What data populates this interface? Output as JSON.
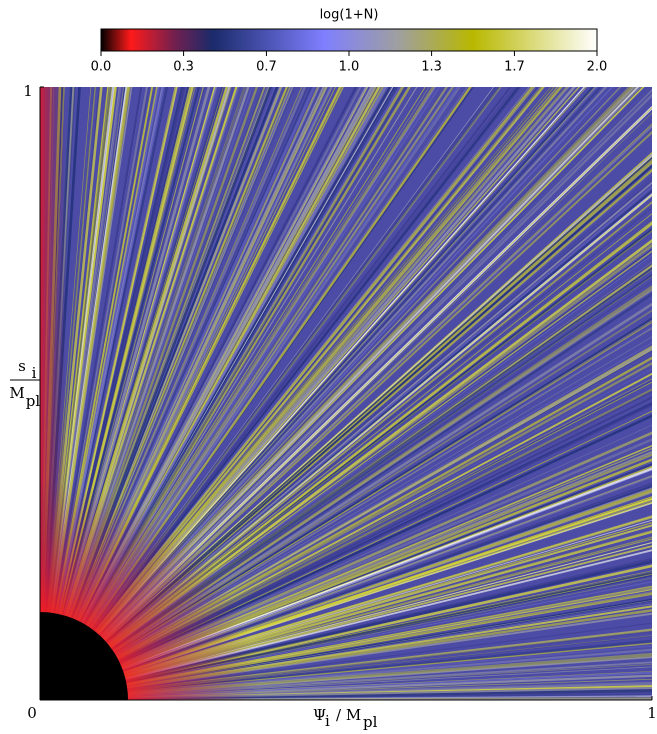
{
  "chart_data": {
    "type": "heatmap",
    "colorbar": {
      "label": "log(1+N)",
      "clim": [
        0,
        2
      ],
      "ticks": [
        {
          "value": 0,
          "label": "0.0"
        },
        {
          "value": 0.333,
          "label": "0.3"
        },
        {
          "value": 0.667,
          "label": "0.7"
        },
        {
          "value": 1,
          "label": "1.0"
        },
        {
          "value": 1.333,
          "label": "1.3"
        },
        {
          "value": 1.667,
          "label": "1.7"
        },
        {
          "value": 2,
          "label": "2.0"
        }
      ],
      "colorscale": [
        {
          "value": 0,
          "color": "#000000"
        },
        {
          "value": 0.12,
          "color": "#ff1a1a"
        },
        {
          "value": 0.3,
          "color": "#702050"
        },
        {
          "value": 0.45,
          "color": "#1a2a6a"
        },
        {
          "value": 0.9,
          "color": "#7f7fff"
        },
        {
          "value": 1.2,
          "color": "#9f9fa0"
        },
        {
          "value": 1.5,
          "color": "#b8b800"
        },
        {
          "value": 2,
          "color": "#ffffff"
        }
      ]
    },
    "xlabel": {
      "symbol": "Ψ",
      "sub": "i",
      "sep": "/ M",
      "sep_sub": "pl"
    },
    "ylabel": {
      "symbol": "s",
      "sub": "i",
      "denominator": "M",
      "denominator_sub": "pl"
    },
    "xlim": [
      0,
      1
    ],
    "xticks": [
      0,
      1
    ],
    "ylim": [
      0,
      1
    ],
    "yticks": [
      0,
      1
    ]
  }
}
